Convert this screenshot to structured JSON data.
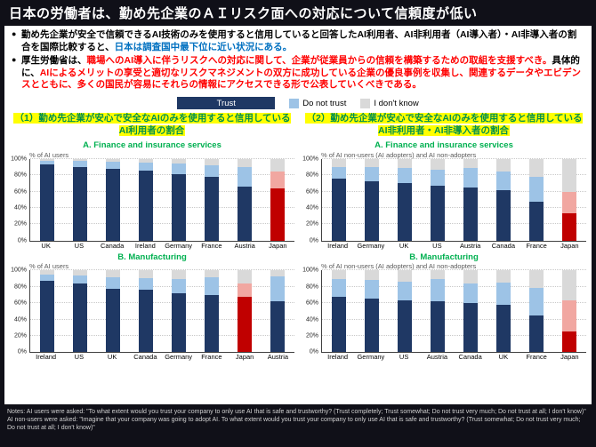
{
  "title": "日本の労働者は、勤め先企業のＡＩリスク面への対応について信頼度が低い",
  "bullet_marker": "●",
  "bullets": [
    {
      "segments": [
        {
          "text": "勤め先企業が安全で信頼できるAI技術のみを使用すると信用していると回答したAI利用者、AI非利用者（AI導入者）・AI非導入者の割合を国際比較すると、",
          "color": "#000000"
        },
        {
          "text": "日本は調査国中最下位に近い状況にある。",
          "color": "#0070c0"
        }
      ]
    },
    {
      "segments": [
        {
          "text": "厚生労働省は、",
          "color": "#000000"
        },
        {
          "text": "職場へのAI導入に伴うリスクへの対応に関して、企業が従業員からの信頼を構築するための取組を支援すべき。",
          "color": "#ff0000"
        },
        {
          "text": "具体的に、",
          "color": "#000000"
        },
        {
          "text": "AIによるメリットの享受と適切なリスクマネジメントの双方に成功している企業の優良事例を収集し、関連するデータやエビデンスとともに、多くの国民が容易にそれらの情報にアクセスできる形で公表していくべきである。",
          "color": "#ff0000"
        }
      ]
    }
  ],
  "legend": {
    "items": [
      {
        "label": "Trust",
        "color": "#1f3864",
        "style": "wide",
        "label_color": "#ffffff"
      },
      {
        "label": "Do not trust",
        "color": "#9dc3e6",
        "style": "square",
        "label_color": "#000000"
      },
      {
        "label": "I don't know",
        "color": "#d9d9d9",
        "style": "square",
        "label_color": "#000000"
      }
    ]
  },
  "sections": [
    {
      "title": "（1）勤め先企業が安心で安全なAIのみを使用すると信用しているAI利用者の割合"
    },
    {
      "title": "（2）勤め先企業が安心で安全なAIのみを使用すると信用しているAI非利用者・AI非導入者の割合"
    }
  ],
  "y_axis_ticks": [
    "0%",
    "20%",
    "40%",
    "60%",
    "80%",
    "100%"
  ],
  "colors": {
    "series": [
      "#1f3864",
      "#9dc3e6",
      "#d9d9d9"
    ],
    "highlight_series": [
      "#c00000",
      "#f1a7a1",
      "#d9d9d9"
    ],
    "background_dark": "#101018",
    "highlight_yellow": "#ffff00",
    "section_green": "#00904d",
    "chart_title_green": "#00b050",
    "blue_text": "#0070c0",
    "red_text": "#ff0000"
  },
  "chart_data": [
    {
      "type": "bar",
      "stacked": true,
      "title": "A. Finance and insurance services",
      "unit_label": "% of AI users",
      "categories": [
        "UK",
        "US",
        "Canada",
        "Ireland",
        "Germany",
        "France",
        "Austria",
        "Japan"
      ],
      "series": [
        {
          "name": "Trust",
          "values": [
            93,
            90,
            88,
            86,
            81,
            78,
            66,
            64
          ]
        },
        {
          "name": "Do not trust",
          "values": [
            5,
            7,
            8,
            9,
            13,
            14,
            24,
            21
          ]
        },
        {
          "name": "I don't know",
          "values": [
            2,
            3,
            4,
            5,
            6,
            8,
            10,
            15
          ]
        }
      ],
      "highlight_category": "Japan",
      "ylim": [
        0,
        100
      ]
    },
    {
      "type": "bar",
      "stacked": true,
      "title": "A. Finance and insurance services",
      "unit_label": "% of AI non-users (AI adopters) and AI non-adopters",
      "categories": [
        "Ireland",
        "Germany",
        "UK",
        "US",
        "Austria",
        "Canada",
        "France",
        "Japan"
      ],
      "series": [
        {
          "name": "Trust",
          "values": [
            76,
            73,
            70,
            67,
            65,
            62,
            48,
            33
          ]
        },
        {
          "name": "Do not trust",
          "values": [
            14,
            17,
            19,
            20,
            24,
            22,
            30,
            27
          ]
        },
        {
          "name": "I don't know",
          "values": [
            10,
            10,
            11,
            13,
            11,
            16,
            22,
            40
          ]
        }
      ],
      "highlight_category": "Japan",
      "ylim": [
        0,
        100
      ]
    },
    {
      "type": "bar",
      "stacked": true,
      "title": "B. Manufacturing",
      "unit_label": "% of AI users",
      "categories": [
        "Ireland",
        "US",
        "UK",
        "Canada",
        "Germany",
        "France",
        "Japan",
        "Austria"
      ],
      "series": [
        {
          "name": "Trust",
          "values": [
            87,
            84,
            78,
            76,
            72,
            70,
            68,
            62
          ]
        },
        {
          "name": "Do not trust",
          "values": [
            8,
            10,
            14,
            15,
            18,
            22,
            16,
            31
          ]
        },
        {
          "name": "I don't know",
          "values": [
            5,
            6,
            8,
            9,
            10,
            8,
            16,
            7
          ]
        }
      ],
      "highlight_category": "Japan",
      "ylim": [
        0,
        100
      ]
    },
    {
      "type": "bar",
      "stacked": true,
      "title": "B. Manufacturing",
      "unit_label": "% of AI non-users (AI adopters) and AI non-adopters",
      "categories": [
        "Ireland",
        "Germany",
        "US",
        "Austria",
        "Canada",
        "UK",
        "France",
        "Japan"
      ],
      "series": [
        {
          "name": "Trust",
          "values": [
            68,
            66,
            63,
            62,
            60,
            58,
            45,
            25
          ]
        },
        {
          "name": "Do not trust",
          "values": [
            22,
            22,
            23,
            27,
            24,
            27,
            34,
            38
          ]
        },
        {
          "name": "I don't know",
          "values": [
            10,
            12,
            14,
            11,
            16,
            15,
            21,
            37
          ]
        }
      ],
      "highlight_category": "Japan",
      "ylim": [
        0,
        100
      ]
    }
  ],
  "notes": "Notes: AI users were asked: \"To what extent would you trust your company to only use AI that is safe and trustworthy? (Trust completely; Trust somewhat; Do not trust very much; Do not trust at all; I don't know)\" AI non-users were asked: \"Imagine that your company was going to adopt AI. To what extent would you trust your company to only use AI that is safe and trustworthy? (Trust somewhat; Do not trust very much; Do not trust at all; I don't know)\""
}
